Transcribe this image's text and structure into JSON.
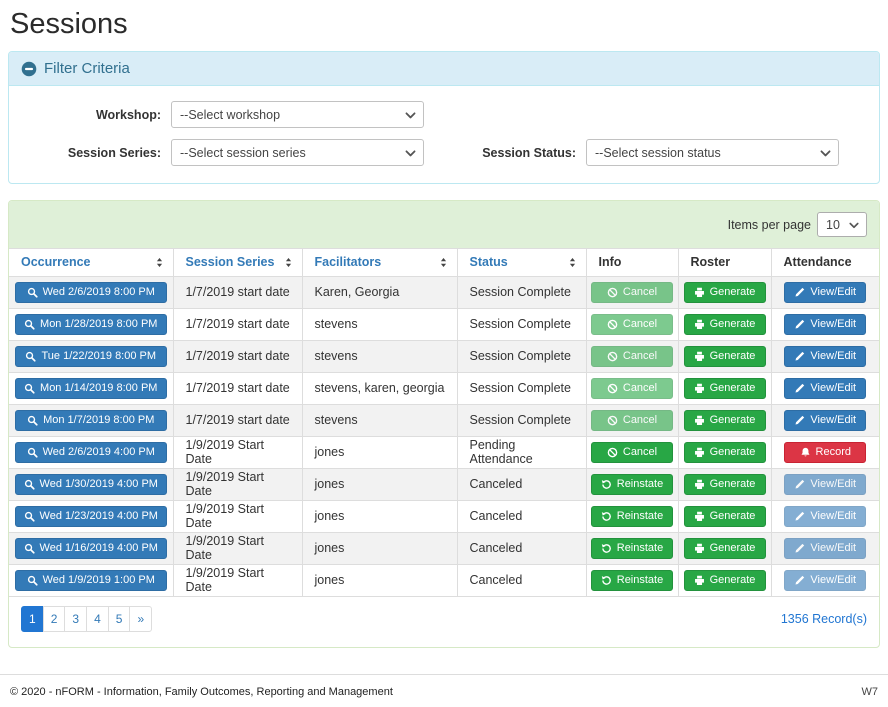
{
  "page_title": "Sessions",
  "filter_panel": {
    "title": "Filter Criteria",
    "collapse_icon": "minus-circle-icon",
    "workshop": {
      "label": "Workshop:",
      "selected": "--Select workshop"
    },
    "session_series": {
      "label": "Session Series:",
      "selected": "--Select session series"
    },
    "session_status": {
      "label": "Session Status:",
      "selected": "--Select session status"
    }
  },
  "sessions_table": {
    "items_per_page": {
      "label": "Items per page",
      "selected": "10"
    },
    "columns": [
      {
        "label": "Occurrence",
        "sortable": true
      },
      {
        "label": "Session Series",
        "sortable": true
      },
      {
        "label": "Facilitators",
        "sortable": true
      },
      {
        "label": "Status",
        "sortable": true
      },
      {
        "label": "Info",
        "sortable": false
      },
      {
        "label": "Roster",
        "sortable": false
      },
      {
        "label": "Attendance",
        "sortable": false
      }
    ],
    "rows": [
      {
        "occurrence": {
          "label": "Wed 2/6/2019 8:00 PM",
          "icon": "search-icon"
        },
        "session_series": "1/7/2019 start date",
        "facilitators": "Karen, Georgia",
        "status": "Session Complete",
        "actions": {
          "info": {
            "label": "Cancel",
            "icon": "ban-icon",
            "variant": "success",
            "disabled": true
          },
          "roster": {
            "label": "Generate",
            "icon": "printer-icon",
            "variant": "success",
            "disabled": false
          },
          "attendance": {
            "label": "View/Edit",
            "icon": "pencil-icon",
            "variant": "primary",
            "disabled": false
          }
        }
      },
      {
        "occurrence": {
          "label": "Mon 1/28/2019 8:00 PM",
          "icon": "search-icon"
        },
        "session_series": "1/7/2019 start date",
        "facilitators": "stevens",
        "status": "Session Complete",
        "actions": {
          "info": {
            "label": "Cancel",
            "icon": "ban-icon",
            "variant": "success",
            "disabled": true
          },
          "roster": {
            "label": "Generate",
            "icon": "printer-icon",
            "variant": "success",
            "disabled": false
          },
          "attendance": {
            "label": "View/Edit",
            "icon": "pencil-icon",
            "variant": "primary",
            "disabled": false
          }
        }
      },
      {
        "occurrence": {
          "label": "Tue 1/22/2019 8:00 PM",
          "icon": "search-icon"
        },
        "session_series": "1/7/2019 start date",
        "facilitators": "stevens",
        "status": "Session Complete",
        "actions": {
          "info": {
            "label": "Cancel",
            "icon": "ban-icon",
            "variant": "success",
            "disabled": true
          },
          "roster": {
            "label": "Generate",
            "icon": "printer-icon",
            "variant": "success",
            "disabled": false
          },
          "attendance": {
            "label": "View/Edit",
            "icon": "pencil-icon",
            "variant": "primary",
            "disabled": false
          }
        }
      },
      {
        "occurrence": {
          "label": "Mon 1/14/2019 8:00 PM",
          "icon": "search-icon"
        },
        "session_series": "1/7/2019 start date",
        "facilitators": "stevens, karen, georgia",
        "status": "Session Complete",
        "actions": {
          "info": {
            "label": "Cancel",
            "icon": "ban-icon",
            "variant": "success",
            "disabled": true
          },
          "roster": {
            "label": "Generate",
            "icon": "printer-icon",
            "variant": "success",
            "disabled": false
          },
          "attendance": {
            "label": "View/Edit",
            "icon": "pencil-icon",
            "variant": "primary",
            "disabled": false
          }
        }
      },
      {
        "occurrence": {
          "label": "Mon 1/7/2019 8:00 PM",
          "icon": "search-icon"
        },
        "session_series": "1/7/2019 start date",
        "facilitators": "stevens",
        "status": "Session Complete",
        "actions": {
          "info": {
            "label": "Cancel",
            "icon": "ban-icon",
            "variant": "success",
            "disabled": true
          },
          "roster": {
            "label": "Generate",
            "icon": "printer-icon",
            "variant": "success",
            "disabled": false
          },
          "attendance": {
            "label": "View/Edit",
            "icon": "pencil-icon",
            "variant": "primary",
            "disabled": false
          }
        }
      },
      {
        "occurrence": {
          "label": "Wed 2/6/2019 4:00 PM",
          "icon": "search-icon"
        },
        "session_series": "1/9/2019 Start Date",
        "facilitators": "jones",
        "status": "Pending Attendance",
        "actions": {
          "info": {
            "label": "Cancel",
            "icon": "ban-icon",
            "variant": "success",
            "disabled": false
          },
          "roster": {
            "label": "Generate",
            "icon": "printer-icon",
            "variant": "success",
            "disabled": false
          },
          "attendance": {
            "label": "Record",
            "icon": "bell-icon",
            "variant": "danger",
            "disabled": false
          }
        }
      },
      {
        "occurrence": {
          "label": "Wed 1/30/2019 4:00 PM",
          "icon": "search-icon"
        },
        "session_series": "1/9/2019 Start Date",
        "facilitators": "jones",
        "status": "Canceled",
        "actions": {
          "info": {
            "label": "Reinstate",
            "icon": "undo-icon",
            "variant": "success",
            "disabled": false
          },
          "roster": {
            "label": "Generate",
            "icon": "printer-icon",
            "variant": "success",
            "disabled": false
          },
          "attendance": {
            "label": "View/Edit",
            "icon": "pencil-icon",
            "variant": "primary",
            "disabled": true
          }
        }
      },
      {
        "occurrence": {
          "label": "Wed 1/23/2019 4:00 PM",
          "icon": "search-icon"
        },
        "session_series": "1/9/2019 Start Date",
        "facilitators": "jones",
        "status": "Canceled",
        "actions": {
          "info": {
            "label": "Reinstate",
            "icon": "undo-icon",
            "variant": "success",
            "disabled": false
          },
          "roster": {
            "label": "Generate",
            "icon": "printer-icon",
            "variant": "success",
            "disabled": false
          },
          "attendance": {
            "label": "View/Edit",
            "icon": "pencil-icon",
            "variant": "primary",
            "disabled": true
          }
        }
      },
      {
        "occurrence": {
          "label": "Wed 1/16/2019 4:00 PM",
          "icon": "search-icon"
        },
        "session_series": "1/9/2019 Start Date",
        "facilitators": "jones",
        "status": "Canceled",
        "actions": {
          "info": {
            "label": "Reinstate",
            "icon": "undo-icon",
            "variant": "success",
            "disabled": false
          },
          "roster": {
            "label": "Generate",
            "icon": "printer-icon",
            "variant": "success",
            "disabled": false
          },
          "attendance": {
            "label": "View/Edit",
            "icon": "pencil-icon",
            "variant": "primary",
            "disabled": true
          }
        }
      },
      {
        "occurrence": {
          "label": "Wed 1/9/2019 1:00 PM",
          "icon": "search-icon"
        },
        "session_series": "1/9/2019 Start Date",
        "facilitators": "jones",
        "status": "Canceled",
        "actions": {
          "info": {
            "label": "Reinstate",
            "icon": "undo-icon",
            "variant": "success",
            "disabled": false
          },
          "roster": {
            "label": "Generate",
            "icon": "printer-icon",
            "variant": "success",
            "disabled": false
          },
          "attendance": {
            "label": "View/Edit",
            "icon": "pencil-icon",
            "variant": "primary",
            "disabled": true
          }
        }
      }
    ],
    "pagination": {
      "pages": [
        "1",
        "2",
        "3",
        "4",
        "5",
        "»"
      ],
      "active_page": "1"
    },
    "record_count": "1356 Record(s)"
  },
  "footer": {
    "copyright": "© 2020 - nFORM - Information, Family Outcomes, Reporting and Management",
    "environment": "W7"
  },
  "colors": {
    "primary_blue": "#337ab7",
    "success_green": "#28a745",
    "danger_red": "#dc3545",
    "filter_header_bg": "#d9edf7",
    "filter_header_text": "#31708f",
    "table_band_bg": "#dff0d8",
    "pagination_active": "#2176d2",
    "row_stripe": "#f2f2f2"
  }
}
